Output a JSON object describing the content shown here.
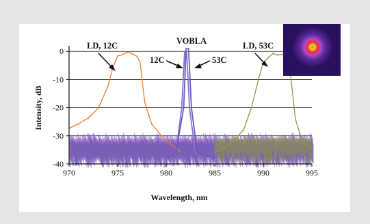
{
  "chart_data": {
    "type": "line",
    "title": "",
    "xlabel": "Wavelength, nm",
    "ylabel": "Intensity, dB",
    "xlim": [
      970,
      995
    ],
    "ylim": [
      -40,
      2
    ],
    "xticks": [
      970,
      975,
      980,
      985,
      990,
      995
    ],
    "yticks": [
      0,
      -10,
      -20,
      -30,
      -40
    ],
    "grid": "horizontal",
    "series": [
      {
        "name": "LD, 12C",
        "color": "#f07a2a",
        "x": [
          970,
          971,
          972,
          973,
          974,
          974.5,
          975,
          975.5,
          976,
          976.5,
          977,
          977.3,
          977.8,
          978.5,
          979.5,
          980.5,
          981.5
        ],
        "values": [
          -27,
          -26,
          -24,
          -20,
          -12,
          -6,
          -2,
          -1,
          -0.5,
          -1,
          -1.5,
          -4,
          -18,
          -26,
          -30,
          -33,
          -36
        ]
      },
      {
        "name": "VOBLA 12C",
        "color": "#8a6fd6",
        "x": [
          980,
          981,
          981.6,
          981.9,
          982.1,
          982.4,
          983,
          985
        ],
        "values": [
          -38,
          -36,
          -20,
          0,
          0,
          -20,
          -36,
          -38
        ]
      },
      {
        "name": "VOBLA 53C",
        "color": "#6a5ab8",
        "x": [
          980,
          981,
          981.8,
          982.05,
          982.3,
          982.6,
          983.2,
          985
        ],
        "values": [
          -38,
          -36,
          -20,
          1,
          1,
          -20,
          -36,
          -38
        ]
      },
      {
        "name": "LD, 53C",
        "color": "#8c9a3a",
        "x": [
          985,
          986,
          987,
          988,
          988.8,
          989.5,
          990,
          990.5,
          991,
          991.5,
          992,
          992.5,
          992.8,
          993.3,
          994,
          995
        ],
        "values": [
          -36,
          -34,
          -32,
          -28,
          -20,
          -10,
          -4,
          -2,
          -0.5,
          -1.5,
          -1,
          -3,
          -8,
          -24,
          -32,
          -35
        ]
      }
    ],
    "noise_floor": {
      "min": -40,
      "max": -30,
      "colors": [
        "#5a5ac8",
        "#9a6ad8",
        "#c86aa8",
        "#4a4ab0"
      ]
    },
    "annotations": [
      {
        "text": "LD, 12C",
        "points_to": "LD, 12C"
      },
      {
        "text": "VOBLA",
        "points_to": "VOBLA"
      },
      {
        "text": "12C",
        "points_to": "VOBLA 12C"
      },
      {
        "text": "53C",
        "points_to": "VOBLA 53C"
      },
      {
        "text": "LD, 53C",
        "points_to": "LD, 53C"
      }
    ],
    "inset": {
      "type": "beam-profile-image",
      "colors": [
        "#2a1060",
        "#b04ac8",
        "#ff2a2a",
        "#ffd020",
        "#20d060"
      ]
    }
  }
}
